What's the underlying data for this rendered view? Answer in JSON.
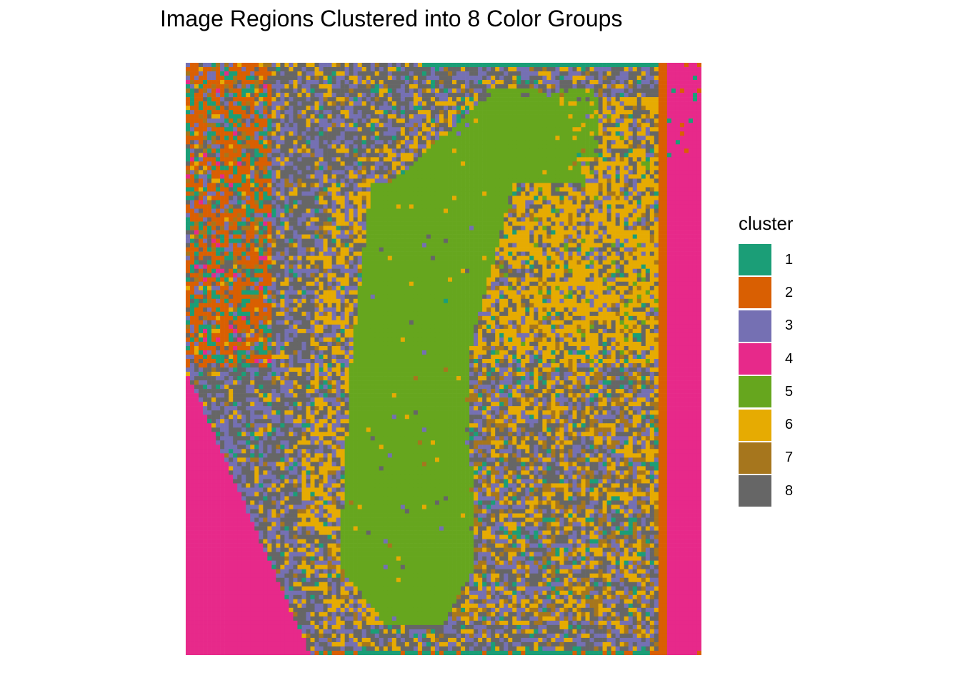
{
  "chart_data": {
    "type": "heatmap",
    "title": "Image Regions Clustered into 8 Color Groups",
    "legend": {
      "title": "cluster",
      "position": "right",
      "entries": [
        {
          "label": "1",
          "color": "#1B9E77"
        },
        {
          "label": "2",
          "color": "#D95F02"
        },
        {
          "label": "3",
          "color": "#7570B3"
        },
        {
          "label": "4",
          "color": "#E7298A"
        },
        {
          "label": "5",
          "color": "#66A61E"
        },
        {
          "label": "6",
          "color": "#E6AB02"
        },
        {
          "label": "7",
          "color": "#A6761D"
        },
        {
          "label": "8",
          "color": "#666666"
        }
      ]
    },
    "grid": false,
    "axes_visible": false,
    "cells": {
      "cols": 120,
      "rows": 138,
      "value": "cluster id 1-8 per cell"
    }
  }
}
